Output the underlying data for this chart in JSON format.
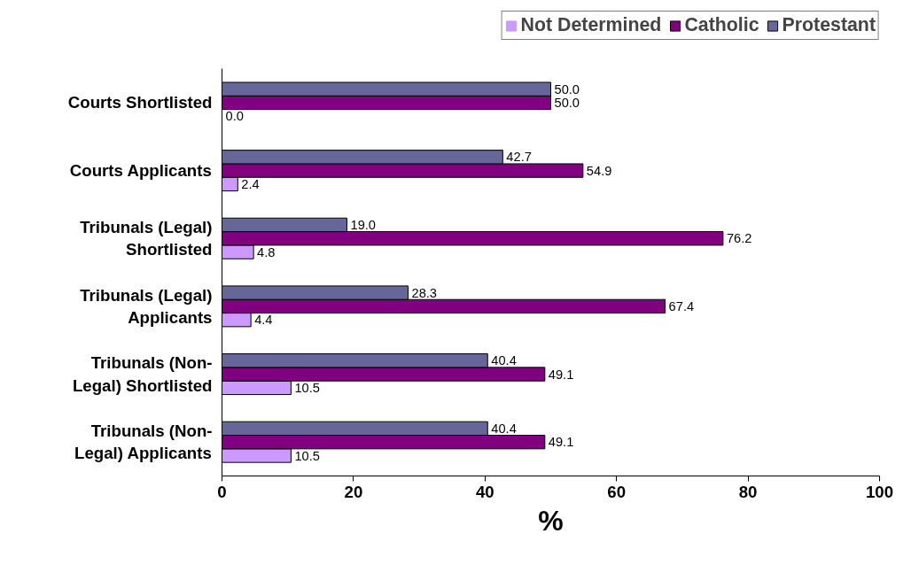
{
  "chart_data": {
    "type": "bar",
    "orientation": "horizontal",
    "xlabel": "%",
    "categories": [
      "Courts Shortlisted",
      "Courts Applicants",
      "Tribunals (Legal) Shortlisted",
      "Tribunals (Legal) Applicants",
      "Tribunals (Non-Legal) Shortlisted",
      "Tribunals (Non-Legal) Applicants"
    ],
    "series": [
      {
        "name": "Not Determined",
        "color": "#cc99ff",
        "values": [
          0.0,
          2.4,
          4.8,
          4.4,
          10.5,
          10.5
        ],
        "value_labels": [
          "0.0",
          "2.4",
          "4.8",
          "4.4",
          "10.5",
          "10.5"
        ]
      },
      {
        "name": "Catholic",
        "color": "#800080",
        "values": [
          50.0,
          54.9,
          76.2,
          67.4,
          49.1,
          49.1
        ],
        "value_labels": [
          "50.0",
          "54.9",
          "76.2",
          "67.4",
          "49.1",
          "49.1"
        ]
      },
      {
        "name": "Protestant",
        "color": "#666699",
        "values": [
          50.0,
          42.7,
          19.0,
          28.3,
          40.4,
          40.4
        ],
        "value_labels": [
          "50.0",
          "42.7",
          "19.0",
          "28.3",
          "40.4",
          "40.4"
        ]
      }
    ],
    "xlim": [
      0,
      100
    ],
    "xticks": [
      0,
      20,
      40,
      60,
      80,
      100
    ],
    "grid": false,
    "legend": "top right"
  }
}
